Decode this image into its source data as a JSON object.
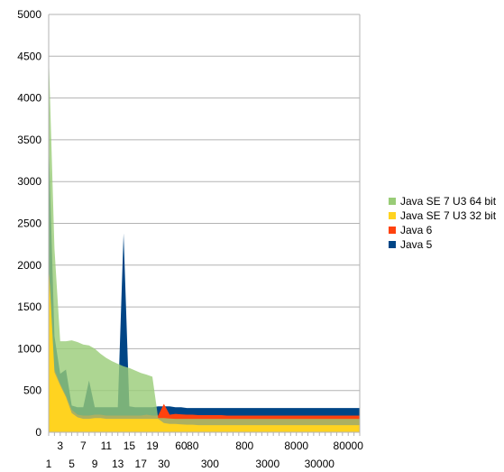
{
  "chart_data": {
    "type": "area",
    "title": "",
    "xlabel": "",
    "ylabel": "",
    "ylim": [
      0,
      5000
    ],
    "yticks": [
      0,
      500,
      1000,
      1500,
      2000,
      2500,
      3000,
      3500,
      4000,
      4500,
      5000
    ],
    "grid": "horizontal",
    "legend_position": "right",
    "categories": [
      "1",
      "2",
      "3",
      "4",
      "5",
      "6",
      "7",
      "8",
      "9",
      "10",
      "11",
      "12",
      "13",
      "14",
      "15",
      "16",
      "17",
      "18",
      "19",
      "20",
      "30",
      "40",
      "50",
      "60",
      "70",
      "80",
      "90",
      "100",
      "200",
      "300",
      "400",
      "500",
      "600",
      "700",
      "800",
      "900",
      "1000",
      "2000",
      "3000",
      "4000",
      "5000",
      "6000",
      "7000",
      "8000",
      "9000",
      "10000",
      "20000",
      "30000",
      "40000",
      "50000",
      "60000",
      "70000",
      "80000",
      "90000",
      "100000"
    ],
    "xtick_labels": [
      {
        "index": 0,
        "row": 2,
        "text": "1"
      },
      {
        "index": 2,
        "row": 1,
        "text": "3"
      },
      {
        "index": 4,
        "row": 2,
        "text": "5"
      },
      {
        "index": 6,
        "row": 1,
        "text": "7"
      },
      {
        "index": 8,
        "row": 2,
        "text": "9"
      },
      {
        "index": 10,
        "row": 1,
        "text": "11"
      },
      {
        "index": 12,
        "row": 2,
        "text": "13"
      },
      {
        "index": 14,
        "row": 1,
        "text": "15"
      },
      {
        "index": 16,
        "row": 2,
        "text": "17"
      },
      {
        "index": 18,
        "row": 1,
        "text": "19"
      },
      {
        "index": 20,
        "row": 2,
        "text": "30"
      },
      {
        "index": 23,
        "row": 1,
        "text": "60"
      },
      {
        "index": 25,
        "row": 1,
        "text": "80"
      },
      {
        "index": 28,
        "row": 2,
        "text": "300"
      },
      {
        "index": 34,
        "row": 1,
        "text": "800"
      },
      {
        "index": 38,
        "row": 2,
        "text": "3000"
      },
      {
        "index": 43,
        "row": 1,
        "text": "8000"
      },
      {
        "index": 47,
        "row": 2,
        "text": "30000"
      },
      {
        "index": 52,
        "row": 1,
        "text": "80000"
      }
    ],
    "series": [
      {
        "name": "Java SE 7 U3 64 bit",
        "color": "#99CC77",
        "values": [
          4550,
          2200,
          1090,
          1090,
          1100,
          1080,
          1050,
          1040,
          1000,
          940,
          890,
          850,
          820,
          790,
          770,
          740,
          710,
          690,
          665,
          170,
          170,
          165,
          160,
          160,
          160,
          160,
          160,
          160,
          160,
          160,
          160,
          160,
          160,
          160,
          160,
          160,
          160,
          160,
          160,
          160,
          160,
          160,
          160,
          160,
          160,
          160,
          160,
          160,
          160,
          160,
          160,
          160,
          160,
          160,
          160
        ]
      },
      {
        "name": "Java SE 7 U3 32 bit",
        "color": "#FFD320",
        "values": [
          2000,
          720,
          560,
          420,
          230,
          180,
          160,
          160,
          170,
          170,
          160,
          160,
          160,
          160,
          160,
          160,
          160,
          160,
          160,
          160,
          110,
          100,
          100,
          95,
          90,
          90,
          85,
          85,
          85,
          85,
          85,
          85,
          85,
          85,
          85,
          85,
          85,
          85,
          85,
          85,
          85,
          85,
          85,
          85,
          85,
          85,
          85,
          85,
          85,
          85,
          85,
          85,
          85,
          85,
          85
        ]
      },
      {
        "name": "Java 6",
        "color": "#FF420E",
        "values": [
          2000,
          750,
          580,
          440,
          270,
          210,
          200,
          200,
          210,
          210,
          200,
          200,
          200,
          200,
          200,
          200,
          200,
          210,
          200,
          200,
          340,
          210,
          220,
          215,
          210,
          210,
          205,
          205,
          205,
          205,
          205,
          200,
          200,
          200,
          200,
          200,
          200,
          200,
          200,
          200,
          200,
          200,
          200,
          200,
          200,
          200,
          200,
          200,
          200,
          200,
          200,
          200,
          200,
          200,
          200
        ]
      },
      {
        "name": "Java 5",
        "color": "#004586",
        "values": [
          3500,
          1150,
          700,
          750,
          320,
          300,
          300,
          620,
          300,
          300,
          300,
          300,
          300,
          2380,
          310,
          300,
          300,
          300,
          300,
          310,
          310,
          310,
          300,
          300,
          290,
          290,
          290,
          290,
          290,
          290,
          290,
          290,
          290,
          290,
          290,
          290,
          290,
          290,
          290,
          290,
          290,
          290,
          290,
          290,
          290,
          290,
          290,
          290,
          290,
          290,
          290,
          290,
          290,
          290,
          290
        ]
      }
    ],
    "draw_order": [
      "Java 5",
      "Java 6",
      "Java SE 7 U3 64 bit",
      "Java SE 7 U3 32 bit"
    ],
    "layer_opacity": {
      "Java SE 7 U3 64 bit": 0.8
    }
  }
}
